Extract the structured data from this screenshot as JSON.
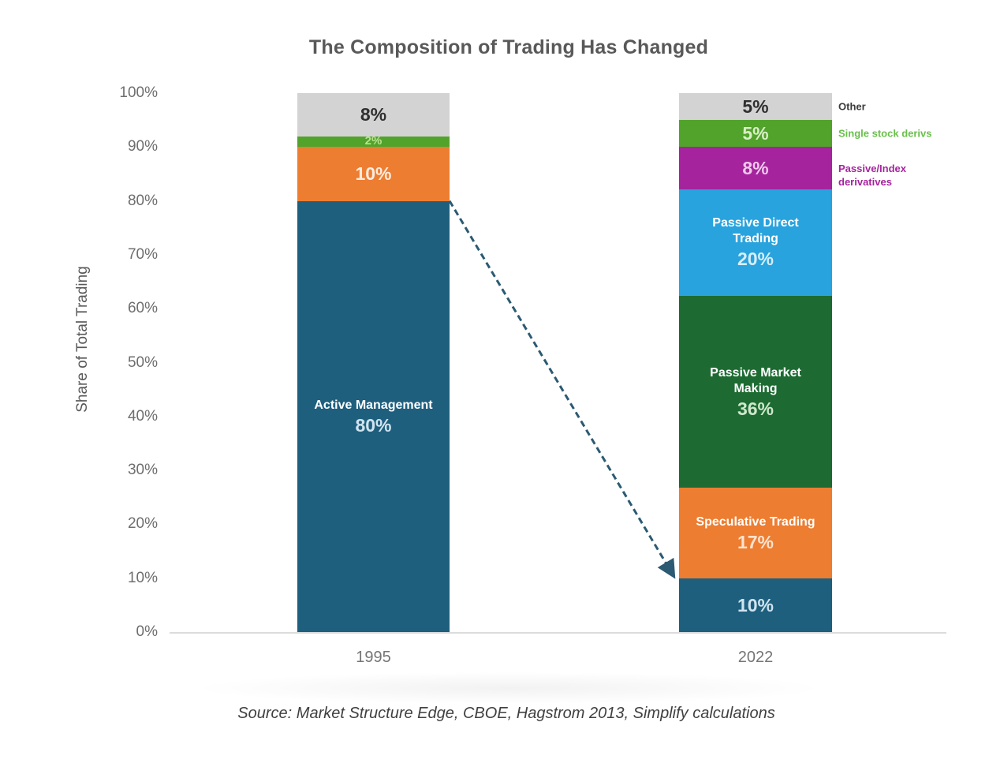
{
  "chart_data": {
    "type": "bar",
    "variant": "stacked-100-percent",
    "title": "The Composition of Trading Has Changed",
    "ylabel": "Share of Total Trading",
    "xlabel": "",
    "ylim": [
      0,
      100
    ],
    "grid": false,
    "y_ticks_top_to_bottom": [
      "100%",
      "90%",
      "80%",
      "70%",
      "60%",
      "50%",
      "40%",
      "30%",
      "20%",
      "10%",
      "0%"
    ],
    "categories": [
      "1995",
      "2022"
    ],
    "bars": [
      {
        "category": "1995",
        "segments_top_to_bottom": [
          {
            "name": "",
            "value": 8,
            "value_label": "8%",
            "fill": "#d3d3d3",
            "value_color": "#2f2f2f"
          },
          {
            "name": "",
            "value": 2,
            "value_label": "2%",
            "fill": "#52a32b",
            "value_color": "#b9e48e"
          },
          {
            "name": "",
            "value": 10,
            "value_label": "10%",
            "fill": "#ed7d31",
            "value_color": "#fdebdd"
          },
          {
            "name": "Active Management",
            "value": 80,
            "value_label": "80%",
            "fill": "#1f5f7e",
            "name_color": "#ffffff",
            "value_color": "#cfe4f0"
          }
        ]
      },
      {
        "category": "2022",
        "segments_top_to_bottom": [
          {
            "name": "",
            "value": 5,
            "value_label": "5%",
            "fill": "#d3d3d3",
            "value_color": "#2f2f2f"
          },
          {
            "name": "",
            "value": 5,
            "value_label": "5%",
            "fill": "#52a32b",
            "value_color": "#d9efc8"
          },
          {
            "name": "",
            "value": 8,
            "value_label": "8%",
            "fill": "#a5249e",
            "value_color": "#f0c9ec"
          },
          {
            "name": "Passive Direct Trading",
            "value": 20,
            "value_label": "20%",
            "fill": "#29a3dd",
            "name_color": "#ffffff",
            "value_color": "#d7eef9"
          },
          {
            "name": "Passive Market Making",
            "value": 36,
            "value_label": "36%",
            "fill": "#1d6b32",
            "name_color": "#ffffff",
            "value_color": "#cfe8cd"
          },
          {
            "name": "Speculative Trading",
            "value": 17,
            "value_label": "17%",
            "fill": "#ed7d31",
            "name_color": "#ffffff",
            "value_color": "#fde3cf"
          },
          {
            "name": "",
            "value": 10,
            "value_label": "10%",
            "fill": "#1f5f7e",
            "value_color": "#cfe4f0"
          }
        ]
      }
    ],
    "legend": {
      "position": "right-of-2022-bar",
      "entries": [
        {
          "label": "Other",
          "color": "#3b3b3b",
          "align_segment_index": 0,
          "wrap": false
        },
        {
          "label": "Single stock derivs",
          "color": "#6abf4b",
          "align_segment_index": 1,
          "wrap": false
        },
        {
          "label": "Passive/Index derivatives",
          "color": "#a5249e",
          "align_segment_index": 2,
          "wrap": true
        }
      ]
    },
    "annotation_arrow": {
      "from": {
        "category": "1995",
        "pct": 80
      },
      "to": {
        "category": "2022",
        "pct": 10
      },
      "color": "#2b5a72",
      "style": "dashed"
    },
    "source_note": "Source: Market Structure Edge, CBOE, Hagstrom 2013, Simplify calculations"
  }
}
